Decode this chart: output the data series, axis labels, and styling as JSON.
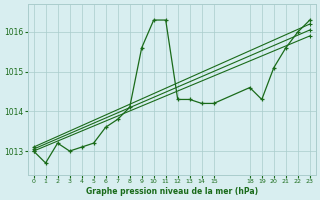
{
  "xlabel": "Graphe pression niveau de la mer (hPa)",
  "bg_color": "#d8eef0",
  "grid_color": "#aacccc",
  "line_color": "#1a6b1a",
  "ylim": [
    1012.4,
    1016.7
  ],
  "xlim": [
    -0.5,
    23.5
  ],
  "yticks": [
    1013,
    1014,
    1015,
    1016
  ],
  "xticks": [
    0,
    1,
    2,
    3,
    4,
    5,
    6,
    7,
    8,
    9,
    10,
    11,
    12,
    13,
    14,
    15,
    18,
    19,
    20,
    21,
    22,
    23
  ],
  "main_series": {
    "x": [
      0,
      1,
      2,
      3,
      4,
      5,
      6,
      7,
      8,
      9,
      10,
      11,
      12,
      13,
      14,
      15,
      18,
      19,
      20,
      21,
      22,
      23
    ],
    "y": [
      1013.0,
      1012.7,
      1013.2,
      1013.0,
      1013.1,
      1013.2,
      1013.6,
      1013.8,
      1014.1,
      1015.6,
      1016.3,
      1016.3,
      1014.3,
      1014.3,
      1014.2,
      1014.2,
      1014.6,
      1014.3,
      1015.1,
      1015.6,
      1016.0,
      1016.3
    ]
  },
  "trend_lines": [
    {
      "x": [
        0,
        23
      ],
      "y": [
        1013.0,
        1015.9
      ]
    },
    {
      "x": [
        0,
        23
      ],
      "y": [
        1013.05,
        1016.05
      ]
    },
    {
      "x": [
        0,
        23
      ],
      "y": [
        1013.1,
        1016.2
      ]
    }
  ]
}
